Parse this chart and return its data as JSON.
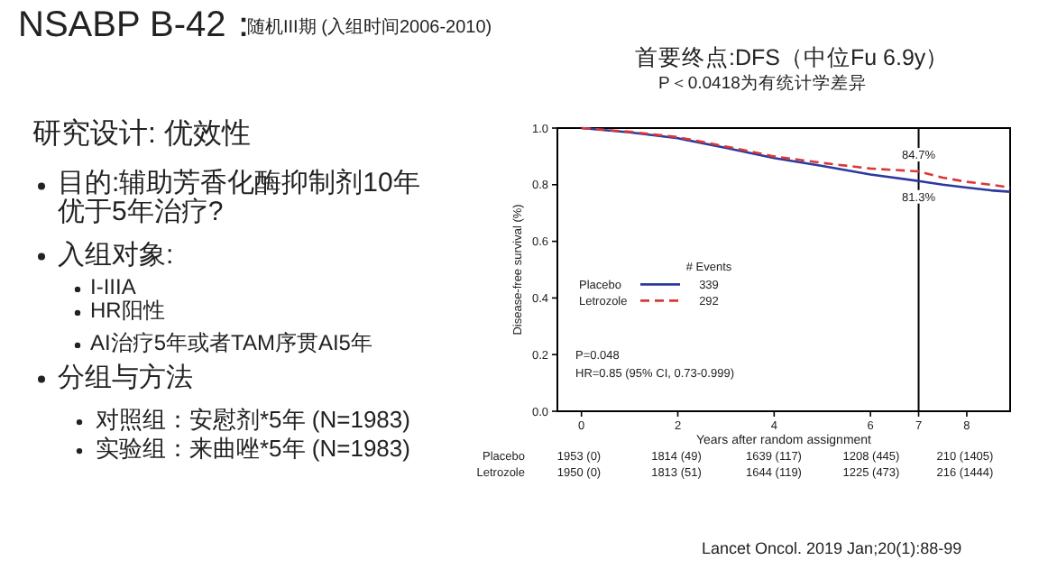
{
  "chart_data": {
    "type": "line",
    "title": "首要终点:DFS（中位Fu 6.9y）",
    "subtitle": "P＜0.0418为有统计学差异",
    "xlabel": "Years after random assignment",
    "ylabel": "Disease-free survival (%)",
    "legend_title": "# Events",
    "xlim": [
      -0.5,
      8.9
    ],
    "ylim": [
      0,
      1.0
    ],
    "xticks": [
      0,
      2,
      4,
      6,
      7,
      8
    ],
    "yticks": [
      {
        "value": 0,
        "label": "0.0"
      },
      {
        "value": 0.2,
        "label": "0.2"
      },
      {
        "value": 0.4,
        "label": "0.4"
      },
      {
        "value": 0.6,
        "label": "0.6"
      },
      {
        "value": 0.8,
        "label": "0.8"
      },
      {
        "value": 1.0,
        "label": "1.0"
      }
    ],
    "x": [
      0,
      1,
      2,
      3,
      4,
      5,
      6,
      7,
      7.5,
      8,
      8.5,
      8.9
    ],
    "series": [
      {
        "name": "Placebo",
        "color": "#2b3a9e",
        "line_style": "solid",
        "values": [
          1.0,
          0.985,
          0.964,
          0.93,
          0.894,
          0.866,
          0.836,
          0.813,
          0.8,
          0.79,
          0.78,
          0.775
        ]
      },
      {
        "name": "Letrozole",
        "color": "#d9383a",
        "line_style": "dashed",
        "values": [
          1.0,
          0.987,
          0.968,
          0.935,
          0.9,
          0.877,
          0.857,
          0.847,
          0.825,
          0.81,
          0.8,
          0.79
        ]
      }
    ],
    "ref_lines": [
      {
        "axis": "x",
        "value": 7,
        "color": "#000000"
      }
    ],
    "legend": "left",
    "grid": false,
    "marker": "none",
    "annotations": [
      "NSABP B-42：",
      "随机III期 (入组时间2006-2010)",
      "研究设计: 优效性",
      "目的:辅助芳香化酶抑制剂10年优于5年治疗?",
      "入组对象:",
      "I-IIIA",
      "HR阳性",
      "AI治疗5年或者TAM序贯AI5年",
      "分组与方法",
      "对照组：安慰剂*5年 (N=1983)",
      "实验组：来曲唑*5年 (N=1983)",
      "339",
      "292",
      "P=0.048",
      "HR=0.85 (95% CI, 0.73-0.999)",
      "Placebo",
      "1953 (0)",
      "1814 (49)",
      "1639 (117)",
      "1208 (445)",
      "210 (1405)",
      "Letrozole",
      "1950 (0)",
      "1813 (51)",
      "1644 (119)",
      "1225 (473)",
      "216 (1444)",
      "Lancet Oncol. 2019 Jan;20(1):88-99",
      {
        "text": "84.7%",
        "x": 7,
        "y": 0.847
      },
      {
        "text": "81.3%",
        "x": 7,
        "y": 0.813
      }
    ]
  }
}
